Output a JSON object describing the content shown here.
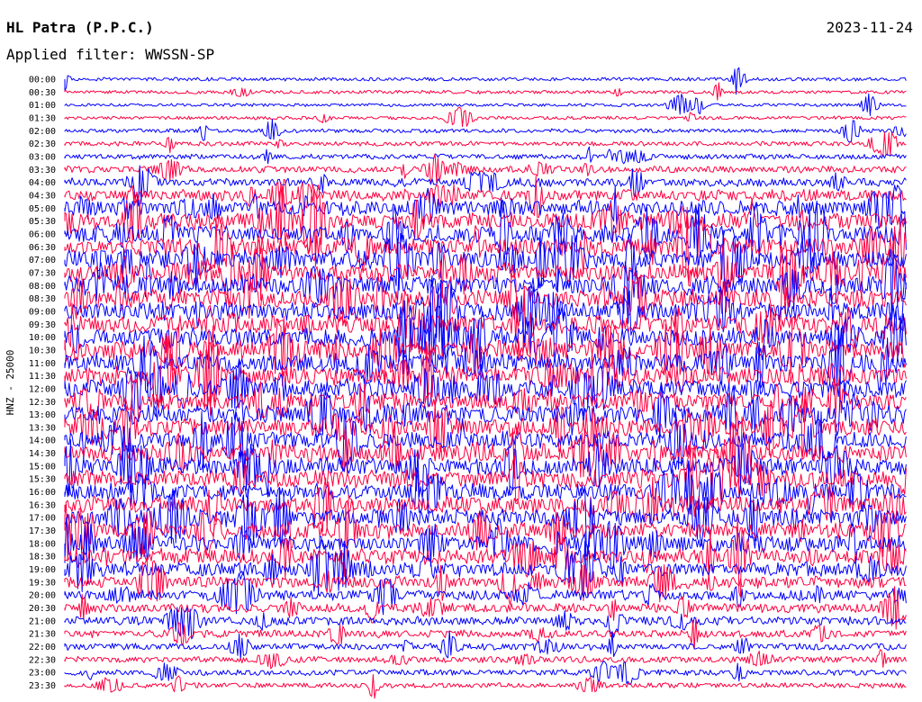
{
  "header": {
    "station": "HL Patra (P.P.C.)",
    "date": "2023-11-24",
    "filter": "Applied filter: WWSSN-SP"
  },
  "chart_data": {
    "type": "line",
    "title": "HL Patra (P.P.C.)",
    "subtitle": "Applied filter: WWSSN-SP",
    "ylabel": "HNZ - 25000",
    "grid": false,
    "colors": {
      "blue": "#0000ff",
      "red": "#ff0040"
    },
    "color_cycle": [
      "blue",
      "red"
    ],
    "rows": [
      {
        "label": "00:00",
        "color": "blue",
        "activity": 0.12
      },
      {
        "label": "00:30",
        "color": "red",
        "activity": 0.12
      },
      {
        "label": "01:00",
        "color": "blue",
        "activity": 0.1
      },
      {
        "label": "01:30",
        "color": "red",
        "activity": 0.12
      },
      {
        "label": "02:00",
        "color": "blue",
        "activity": 0.15
      },
      {
        "label": "02:30",
        "color": "red",
        "activity": 0.18
      },
      {
        "label": "03:00",
        "color": "blue",
        "activity": 0.22
      },
      {
        "label": "03:30",
        "color": "red",
        "activity": 0.3
      },
      {
        "label": "04:00",
        "color": "blue",
        "activity": 0.4
      },
      {
        "label": "04:30",
        "color": "red",
        "activity": 0.55
      },
      {
        "label": "05:00",
        "color": "blue",
        "activity": 0.75
      },
      {
        "label": "05:30",
        "color": "red",
        "activity": 0.85
      },
      {
        "label": "06:00",
        "color": "blue",
        "activity": 0.9
      },
      {
        "label": "06:30",
        "color": "red",
        "activity": 0.92
      },
      {
        "label": "07:00",
        "color": "blue",
        "activity": 0.95
      },
      {
        "label": "07:30",
        "color": "red",
        "activity": 0.95
      },
      {
        "label": "08:00",
        "color": "blue",
        "activity": 0.95
      },
      {
        "label": "08:30",
        "color": "red",
        "activity": 0.95
      },
      {
        "label": "09:00",
        "color": "blue",
        "activity": 0.92
      },
      {
        "label": "09:30",
        "color": "red",
        "activity": 0.92
      },
      {
        "label": "10:00",
        "color": "blue",
        "activity": 0.95
      },
      {
        "label": "10:30",
        "color": "red",
        "activity": 0.95
      },
      {
        "label": "11:00",
        "color": "blue",
        "activity": 0.95
      },
      {
        "label": "11:30",
        "color": "red",
        "activity": 0.95
      },
      {
        "label": "12:00",
        "color": "blue",
        "activity": 0.95
      },
      {
        "label": "12:30",
        "color": "red",
        "activity": 0.92
      },
      {
        "label": "13:00",
        "color": "blue",
        "activity": 0.92
      },
      {
        "label": "13:30",
        "color": "red",
        "activity": 0.92
      },
      {
        "label": "14:00",
        "color": "blue",
        "activity": 0.9
      },
      {
        "label": "14:30",
        "color": "red",
        "activity": 0.9
      },
      {
        "label": "15:00",
        "color": "blue",
        "activity": 0.88
      },
      {
        "label": "15:30",
        "color": "red",
        "activity": 0.88
      },
      {
        "label": "16:00",
        "color": "blue",
        "activity": 0.85
      },
      {
        "label": "16:30",
        "color": "red",
        "activity": 0.85
      },
      {
        "label": "17:00",
        "color": "blue",
        "activity": 0.85
      },
      {
        "label": "17:30",
        "color": "red",
        "activity": 0.82
      },
      {
        "label": "18:00",
        "color": "blue",
        "activity": 0.8
      },
      {
        "label": "18:30",
        "color": "red",
        "activity": 0.78
      },
      {
        "label": "19:00",
        "color": "blue",
        "activity": 0.7
      },
      {
        "label": "19:30",
        "color": "red",
        "activity": 0.6
      },
      {
        "label": "20:00",
        "color": "blue",
        "activity": 0.5
      },
      {
        "label": "20:30",
        "color": "red",
        "activity": 0.45
      },
      {
        "label": "21:00",
        "color": "blue",
        "activity": 0.4
      },
      {
        "label": "21:30",
        "color": "red",
        "activity": 0.35
      },
      {
        "label": "22:00",
        "color": "blue",
        "activity": 0.3
      },
      {
        "label": "22:30",
        "color": "red",
        "activity": 0.28
      },
      {
        "label": "23:00",
        "color": "blue",
        "activity": 0.25
      },
      {
        "label": "23:30",
        "color": "red",
        "activity": 0.22
      }
    ]
  }
}
